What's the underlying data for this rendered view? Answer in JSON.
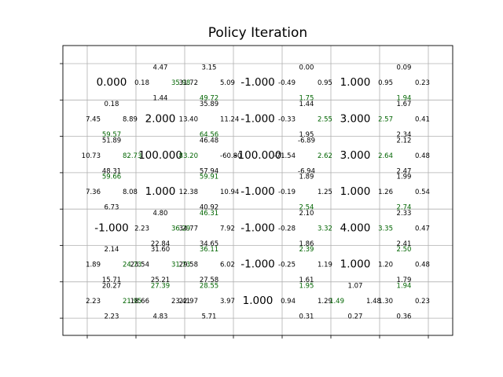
{
  "chart_data": {
    "type": "heatmap",
    "title": "Policy Iteration",
    "rows": 7,
    "cols": 7,
    "x_ticks": 8,
    "y_ticks": 8,
    "grid": true,
    "best_color": "#006400",
    "text_color": "#000000",
    "cells": [
      [
        {
          "value": "0.000"
        },
        {
          "q": {
            "up": "4.47",
            "left": "0.18",
            "right": "35.98",
            "down": "1.44"
          },
          "best": "right"
        },
        {
          "q": {
            "up": "3.15",
            "left": "31.72",
            "right": "5.09",
            "down": "49.72"
          },
          "best": "down"
        },
        {
          "value": "-1.000"
        },
        {
          "q": {
            "up": "0.00",
            "left": "-0.49",
            "right": "0.95",
            "down": "1.75"
          },
          "best": "down"
        },
        {
          "value": "1.000"
        },
        {
          "q": {
            "up": "0.09",
            "left": "0.95",
            "right": "0.23",
            "down": "1.94"
          },
          "best": "down"
        }
      ],
      [
        {
          "q": {
            "up": "0.18",
            "left": "7.45",
            "right": "8.89",
            "down": "59.57"
          },
          "best": "down"
        },
        {
          "value": "2.000"
        },
        {
          "q": {
            "up": "35.89",
            "left": "13.40",
            "right": "11.24",
            "down": "64.56"
          },
          "best": "down"
        },
        {
          "value": "-1.000"
        },
        {
          "q": {
            "up": "1.44",
            "left": "-0.33",
            "right": "2.55",
            "down": "1.95"
          },
          "best": "right"
        },
        {
          "value": "3.000"
        },
        {
          "q": {
            "up": "1.67",
            "left": "2.57",
            "right": "0.41",
            "down": "2.34"
          },
          "best": "left"
        }
      ],
      [
        {
          "q": {
            "up": "51.89",
            "left": "10.73",
            "right": "82.73",
            "down": "48.31"
          },
          "best": "right"
        },
        {
          "value": "100.000"
        },
        {
          "q": {
            "up": "46.48",
            "left": "83.20",
            "right": "-60.80",
            "down": "57.94"
          },
          "best": "left"
        },
        {
          "value": "-100.000"
        },
        {
          "q": {
            "up": "-6.89",
            "left": "-71.54",
            "right": "2.62",
            "down": "-6.94"
          },
          "best": "right"
        },
        {
          "value": "3.000"
        },
        {
          "q": {
            "up": "2.12",
            "left": "2.64",
            "right": "0.48",
            "down": "2.47"
          },
          "best": "left"
        }
      ],
      [
        {
          "q": {
            "up": "59.66",
            "left": "7.36",
            "right": "8.08",
            "down": "6.73"
          },
          "best": "up"
        },
        {
          "value": "1.000"
        },
        {
          "q": {
            "up": "59.91",
            "left": "12.38",
            "right": "10.94",
            "down": "40.92"
          },
          "best": "up"
        },
        {
          "value": "-1.000"
        },
        {
          "q": {
            "up": "1.89",
            "left": "-0.19",
            "right": "1.25",
            "down": "2.54"
          },
          "best": "down"
        },
        {
          "value": "1.000"
        },
        {
          "q": {
            "up": "1.99",
            "left": "1.26",
            "right": "0.54",
            "down": "2.74"
          },
          "best": "down"
        }
      ],
      [
        {
          "value": "-1.000"
        },
        {
          "q": {
            "up": "4.80",
            "left": "2.23",
            "right": "36.29",
            "down": "22.84"
          },
          "best": "right"
        },
        {
          "q": {
            "up": "46.31",
            "left": "34.77",
            "right": "7.92",
            "down": "34.65"
          },
          "best": "up"
        },
        {
          "value": "-1.000"
        },
        {
          "q": {
            "up": "2.10",
            "left": "-0.28",
            "right": "3.32",
            "down": "1.86"
          },
          "best": "right"
        },
        {
          "value": "4.000"
        },
        {
          "q": {
            "up": "2.33",
            "left": "3.35",
            "right": "0.47",
            "down": "2.41"
          },
          "best": "left"
        }
      ],
      [
        {
          "q": {
            "up": "2.14",
            "left": "1.89",
            "right": "24.73",
            "down": "15.71"
          },
          "best": "right"
        },
        {
          "q": {
            "up": "31.60",
            "left": "23.54",
            "right": "31.73",
            "down": "25.21"
          },
          "best": "right"
        },
        {
          "q": {
            "up": "36.11",
            "left": "29.58",
            "right": "6.02",
            "down": "27.58"
          },
          "best": "up"
        },
        {
          "value": "-1.000"
        },
        {
          "q": {
            "up": "2.39",
            "left": "-0.25",
            "right": "1.19",
            "down": "1.61"
          },
          "best": "up"
        },
        {
          "value": "1.000"
        },
        {
          "q": {
            "up": "2.50",
            "left": "1.20",
            "right": "0.48",
            "down": "1.79"
          },
          "best": "up"
        }
      ],
      [
        {
          "q": {
            "up": "20.27",
            "left": "2.23",
            "right": "21.95",
            "down": "2.23"
          },
          "best": "right"
        },
        {
          "q": {
            "up": "27.39",
            "left": "18.66",
            "right": "23.41",
            "down": "4.83"
          },
          "best": "up"
        },
        {
          "q": {
            "up": "28.55",
            "left": "22.97",
            "right": "3.97",
            "down": "5.71"
          },
          "best": "up"
        },
        {
          "value": "1.000"
        },
        {
          "q": {
            "up": "1.95",
            "left": "0.94",
            "right": "1.29",
            "down": "0.31"
          },
          "best": "up"
        },
        {
          "q": {
            "up": "1.07",
            "left": "1.49",
            "right": "1.48",
            "down": "0.27"
          },
          "best": "left"
        },
        {
          "q": {
            "up": "1.94",
            "left": "1.30",
            "right": "0.23",
            "down": "0.36"
          },
          "best": "up"
        }
      ]
    ]
  }
}
